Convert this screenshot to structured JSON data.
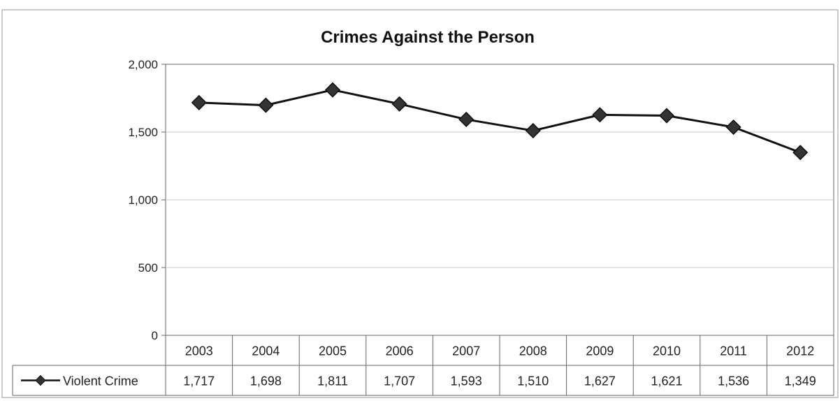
{
  "chart_data": {
    "type": "line",
    "title": "Crimes Against the Person",
    "xlabel": "",
    "ylabel": "",
    "ylim": [
      0,
      2000
    ],
    "yticks": [
      {
        "value": 0,
        "label": "0"
      },
      {
        "value": 500,
        "label": "500"
      },
      {
        "value": 1000,
        "label": "1,000"
      },
      {
        "value": 1500,
        "label": "1,500"
      },
      {
        "value": 2000,
        "label": "2,000"
      }
    ],
    "categories": [
      "2003",
      "2004",
      "2005",
      "2006",
      "2007",
      "2008",
      "2009",
      "2010",
      "2011",
      "2012"
    ],
    "series": [
      {
        "name": "Violent Crime",
        "values": [
          1717,
          1698,
          1811,
          1707,
          1593,
          1510,
          1627,
          1621,
          1536,
          1349
        ],
        "labels": [
          "1,717",
          "1,698",
          "1,811",
          "1,707",
          "1,593",
          "1,510",
          "1,627",
          "1,621",
          "1,536",
          "1,349"
        ],
        "color": "#111111",
        "marker": "diamond"
      }
    ],
    "grid": true,
    "legend": "data-table",
    "colors": {
      "line": "#111111",
      "marker": "#333333",
      "grid": "#c8c8c8",
      "frame": "#666666"
    }
  }
}
